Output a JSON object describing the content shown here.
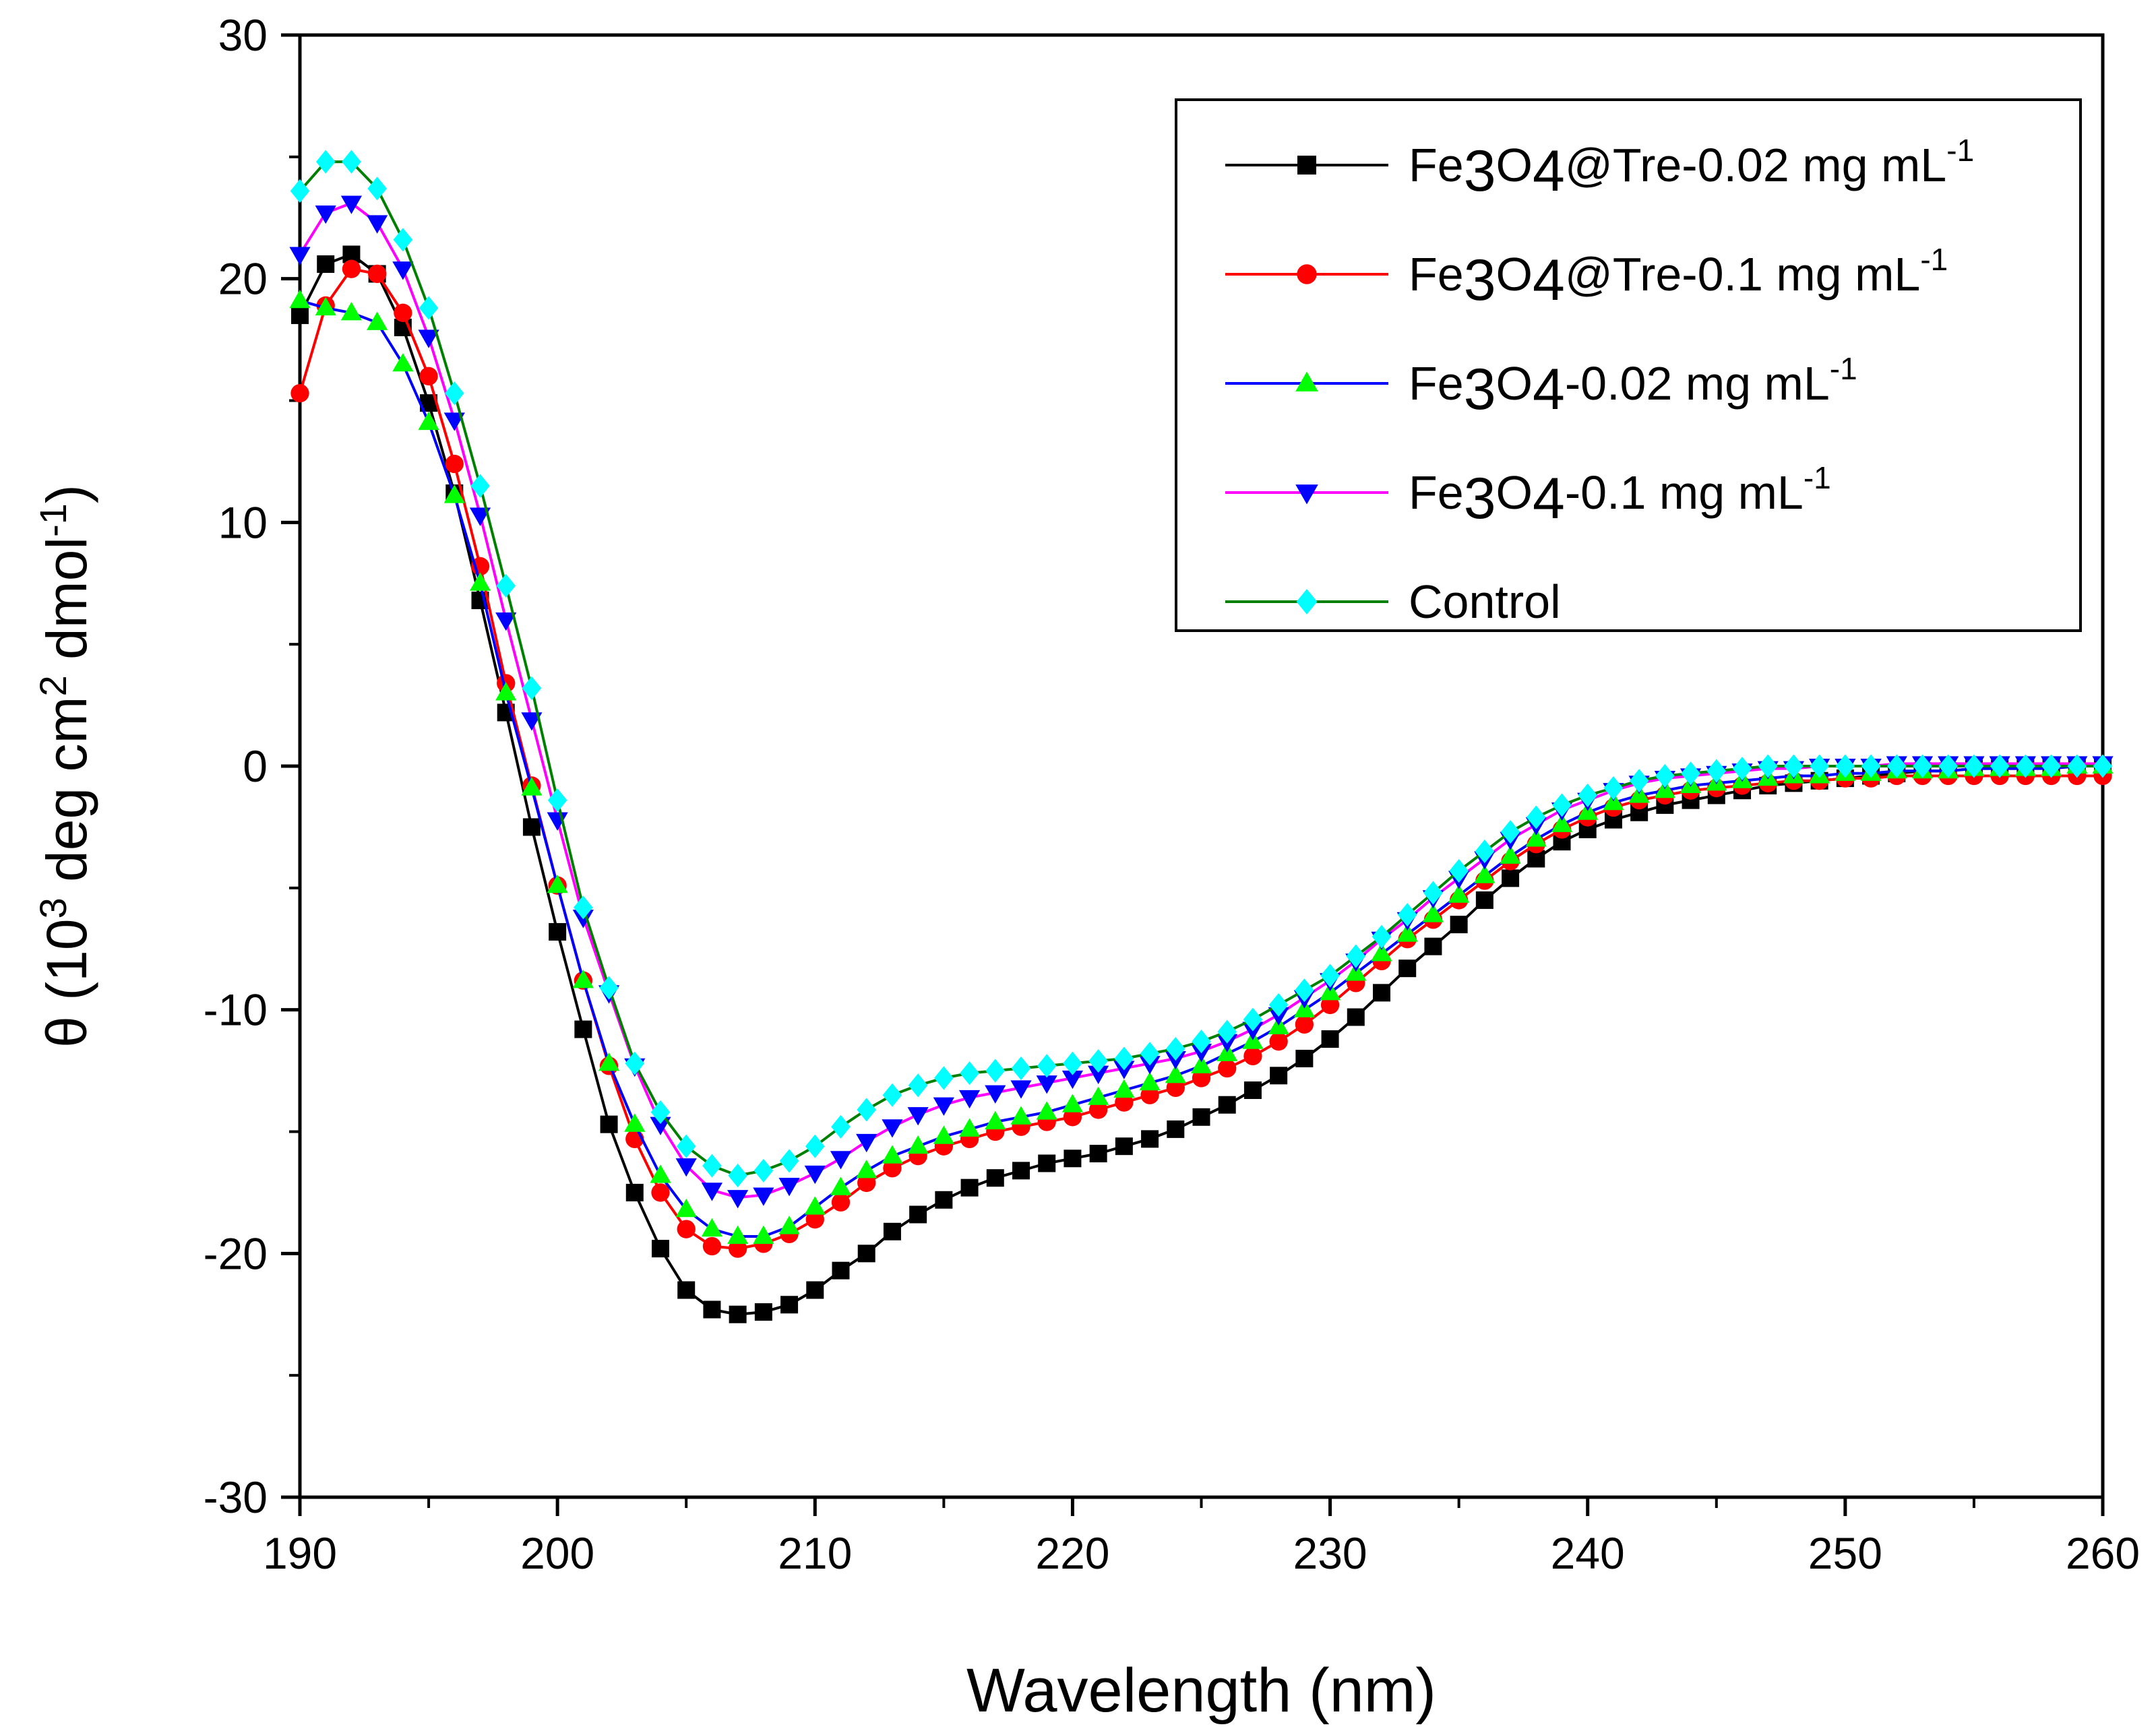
{
  "chart_data": {
    "type": "line",
    "title": "",
    "xlabel": "Wavelength (nm)",
    "ylabel": {
      "prefix": "θ (10",
      "exp": "3",
      "middle": " deg cm",
      "exp2": "2",
      "suffix": " dmol",
      "exp3": "-1",
      "close": ")"
    },
    "xlim": [
      190,
      260
    ],
    "ylim": [
      -30,
      30
    ],
    "xticks": [
      "190",
      "200",
      "210",
      "220",
      "230",
      "240",
      "250",
      "260"
    ],
    "yticks": [
      "-30",
      "-20",
      "-10",
      "0",
      "10",
      "20",
      "30"
    ],
    "grid": false,
    "legend_position": "top-right",
    "x": [
      190,
      191,
      192,
      193,
      194,
      195,
      196,
      197,
      198,
      199,
      200,
      201,
      202,
      203,
      204,
      205,
      206,
      207,
      208,
      209,
      210,
      211,
      212,
      213,
      214,
      215,
      216,
      217,
      218,
      219,
      220,
      221,
      222,
      223,
      224,
      225,
      226,
      227,
      228,
      229,
      230,
      231,
      232,
      233,
      234,
      235,
      236,
      237,
      238,
      239,
      240,
      241,
      242,
      243,
      244,
      245,
      246,
      247,
      248,
      249,
      250,
      251,
      252,
      253,
      254,
      255,
      256,
      257,
      258,
      259,
      260
    ],
    "series": [
      {
        "legend": {
          "base1": "Fe",
          "sub1": "3",
          "base2": "O",
          "sub2": "4",
          "rest": "@Tre-0.02 mg mL",
          "sup": "-1"
        },
        "line_color": "#000000",
        "marker_color": "#000000",
        "marker": "square",
        "values": [
          18.5,
          20.6,
          21.0,
          20.2,
          18.0,
          14.9,
          11.2,
          6.8,
          2.2,
          -2.5,
          -6.8,
          -10.8,
          -14.7,
          -17.5,
          -19.8,
          -21.5,
          -22.3,
          -22.5,
          -22.4,
          -22.1,
          -21.5,
          -20.7,
          -20.0,
          -19.1,
          -18.4,
          -17.8,
          -17.3,
          -16.9,
          -16.6,
          -16.3,
          -16.1,
          -15.9,
          -15.6,
          -15.3,
          -14.9,
          -14.4,
          -13.9,
          -13.3,
          -12.7,
          -12.0,
          -11.2,
          -10.3,
          -9.3,
          -8.3,
          -7.4,
          -6.5,
          -5.5,
          -4.6,
          -3.8,
          -3.1,
          -2.6,
          -2.2,
          -1.9,
          -1.6,
          -1.4,
          -1.2,
          -1.0,
          -0.8,
          -0.7,
          -0.6,
          -0.5,
          -0.4,
          -0.3,
          -0.2,
          -0.2,
          -0.1,
          -0.1,
          -0.1,
          0.0,
          0.0,
          0.0
        ]
      },
      {
        "legend": {
          "base1": "Fe",
          "sub1": "3",
          "base2": "O",
          "sub2": "4",
          "rest": "@Tre-0.1 mg mL",
          "sup": "-1"
        },
        "line_color": "#ff0000",
        "marker_color": "#ff0000",
        "marker": "circle",
        "values": [
          15.3,
          18.9,
          20.4,
          20.2,
          18.6,
          16.0,
          12.4,
          8.2,
          3.4,
          -0.8,
          -4.9,
          -8.8,
          -12.3,
          -15.3,
          -17.5,
          -19.0,
          -19.7,
          -19.8,
          -19.6,
          -19.2,
          -18.6,
          -17.9,
          -17.1,
          -16.5,
          -16.0,
          -15.6,
          -15.3,
          -15.0,
          -14.8,
          -14.6,
          -14.4,
          -14.1,
          -13.8,
          -13.5,
          -13.2,
          -12.8,
          -12.4,
          -11.9,
          -11.3,
          -10.6,
          -9.8,
          -8.9,
          -8.0,
          -7.1,
          -6.3,
          -5.5,
          -4.7,
          -3.9,
          -3.2,
          -2.6,
          -2.1,
          -1.7,
          -1.4,
          -1.2,
          -1.0,
          -0.9,
          -0.8,
          -0.7,
          -0.6,
          -0.6,
          -0.5,
          -0.5,
          -0.4,
          -0.4,
          -0.4,
          -0.4,
          -0.4,
          -0.4,
          -0.4,
          -0.4,
          -0.4
        ]
      },
      {
        "legend": {
          "base1": "Fe",
          "sub1": "3",
          "base2": "O",
          "sub2": "4",
          "rest": "-0.02 mg mL",
          "sup": "-1"
        },
        "line_color": "#0000ff",
        "marker_color": "#00ff00",
        "marker": "triangle-up",
        "values": [
          19.1,
          18.8,
          18.6,
          18.2,
          16.5,
          14.1,
          11.1,
          7.5,
          3.0,
          -0.9,
          -4.9,
          -8.8,
          -12.2,
          -14.7,
          -16.8,
          -18.2,
          -19.0,
          -19.3,
          -19.3,
          -18.9,
          -18.1,
          -17.3,
          -16.6,
          -16.0,
          -15.6,
          -15.2,
          -14.9,
          -14.6,
          -14.4,
          -14.2,
          -13.9,
          -13.6,
          -13.3,
          -13.0,
          -12.7,
          -12.3,
          -11.8,
          -11.3,
          -10.7,
          -10.0,
          -9.3,
          -8.5,
          -7.7,
          -6.9,
          -6.1,
          -5.3,
          -4.5,
          -3.7,
          -3.0,
          -2.4,
          -1.9,
          -1.5,
          -1.2,
          -1.0,
          -0.8,
          -0.7,
          -0.6,
          -0.5,
          -0.4,
          -0.4,
          -0.3,
          -0.3,
          -0.2,
          -0.2,
          -0.2,
          -0.1,
          -0.1,
          -0.1,
          -0.1,
          0.0,
          0.0
        ]
      },
      {
        "legend": {
          "base1": "Fe",
          "sub1": "3",
          "base2": "O",
          "sub2": "4",
          "rest": "-0.1 mg mL",
          "sup": "-1"
        },
        "line_color": "#ff00ff",
        "marker_color": "#0000ff",
        "marker": "triangle-down",
        "values": [
          21.0,
          22.7,
          23.1,
          22.3,
          20.4,
          17.6,
          14.2,
          10.3,
          6.0,
          1.9,
          -2.2,
          -6.2,
          -9.3,
          -12.3,
          -14.7,
          -16.4,
          -17.4,
          -17.7,
          -17.6,
          -17.2,
          -16.7,
          -16.1,
          -15.4,
          -14.8,
          -14.3,
          -13.9,
          -13.6,
          -13.4,
          -13.2,
          -13.0,
          -12.8,
          -12.6,
          -12.4,
          -12.2,
          -12.0,
          -11.7,
          -11.3,
          -10.8,
          -10.2,
          -9.5,
          -8.8,
          -8.0,
          -7.1,
          -6.3,
          -5.4,
          -4.6,
          -3.8,
          -3.0,
          -2.4,
          -1.8,
          -1.4,
          -1.0,
          -0.7,
          -0.5,
          -0.4,
          -0.3,
          -0.2,
          -0.1,
          -0.1,
          0.0,
          0.0,
          0.0,
          0.1,
          0.1,
          0.1,
          0.1,
          0.1,
          0.1,
          0.1,
          0.1,
          0.1
        ]
      },
      {
        "legend": {
          "base1": "Control",
          "sub1": "",
          "base2": "",
          "sub2": "",
          "rest": "",
          "sup": ""
        },
        "line_color": "#008000",
        "marker_color": "#00ffff",
        "marker": "diamond",
        "values": [
          23.6,
          24.8,
          24.8,
          23.7,
          21.6,
          18.8,
          15.3,
          11.5,
          7.4,
          3.2,
          -1.4,
          -5.8,
          -9.1,
          -12.2,
          -14.2,
          -15.6,
          -16.4,
          -16.8,
          -16.6,
          -16.2,
          -15.6,
          -14.8,
          -14.1,
          -13.5,
          -13.1,
          -12.8,
          -12.6,
          -12.5,
          -12.4,
          -12.3,
          -12.2,
          -12.1,
          -12.0,
          -11.8,
          -11.6,
          -11.3,
          -10.9,
          -10.4,
          -9.8,
          -9.2,
          -8.6,
          -7.8,
          -7.0,
          -6.1,
          -5.2,
          -4.3,
          -3.5,
          -2.7,
          -2.1,
          -1.6,
          -1.2,
          -0.9,
          -0.6,
          -0.4,
          -0.3,
          -0.2,
          -0.1,
          0.0,
          0.0,
          0.0,
          0.0,
          0.0,
          0.0,
          0.0,
          0.0,
          0.0,
          0.0,
          0.0,
          0.0,
          0.0,
          0.0
        ]
      }
    ]
  }
}
